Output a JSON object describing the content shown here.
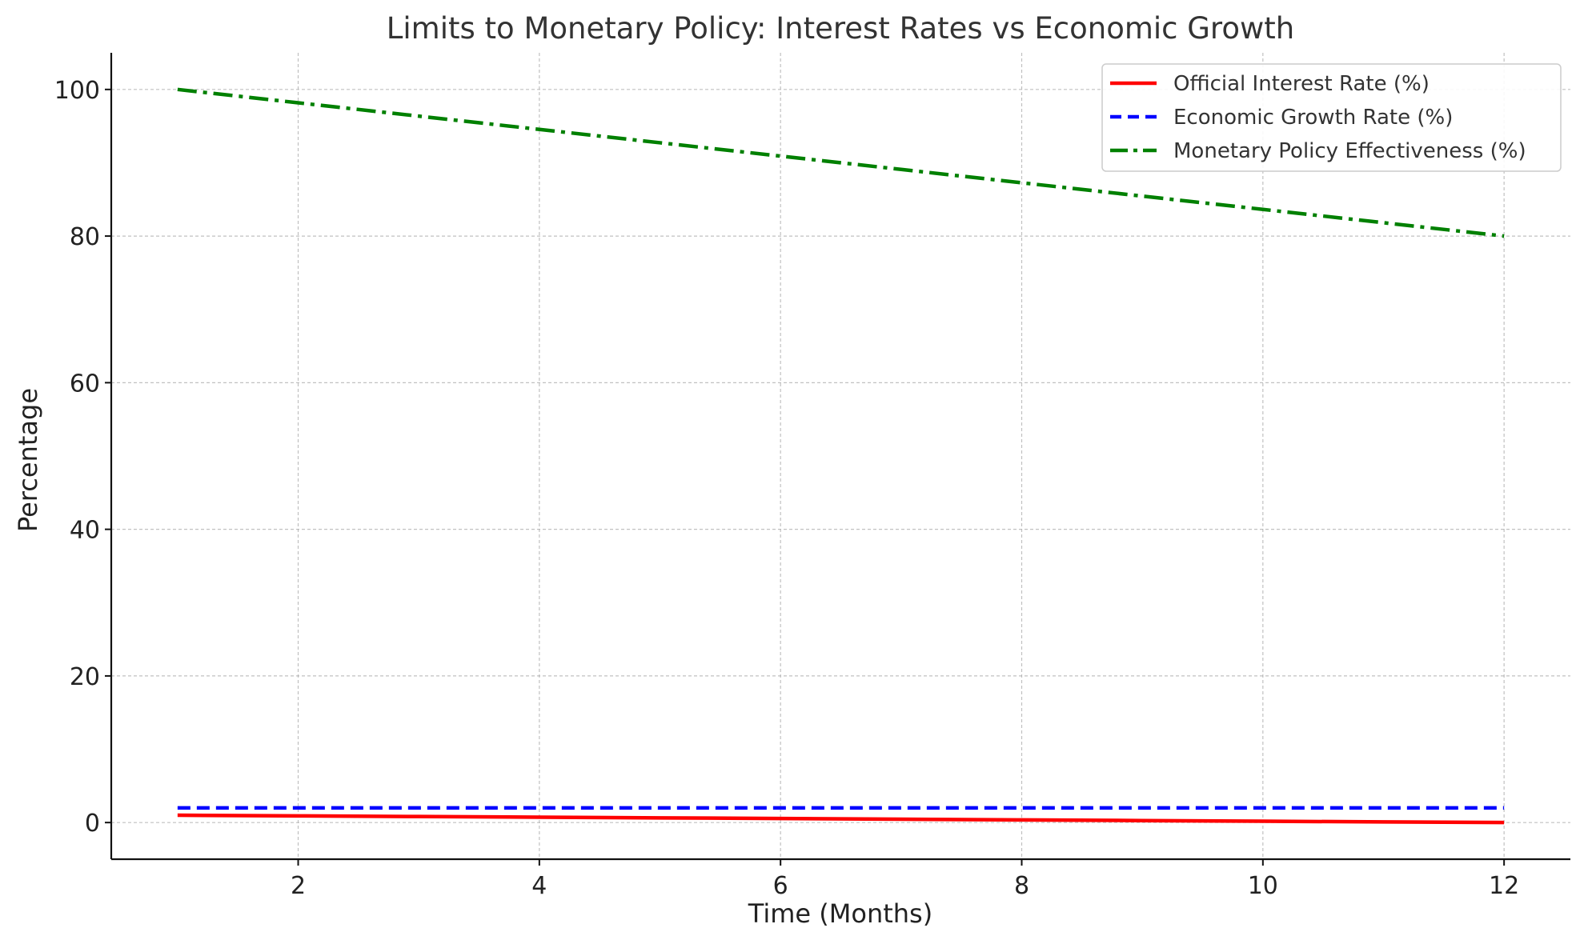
{
  "chart_data": {
    "type": "line",
    "title": "Limits to Monetary Policy: Interest Rates vs Economic Growth",
    "xlabel": "Time (Months)",
    "ylabel": "Percentage",
    "x": [
      1,
      2,
      3,
      4,
      5,
      6,
      7,
      8,
      9,
      10,
      11,
      12
    ],
    "xlim": [
      0.45,
      12.55
    ],
    "ylim": [
      -5,
      105
    ],
    "xticks": [
      2,
      4,
      6,
      8,
      10,
      12
    ],
    "yticks": [
      0,
      20,
      40,
      60,
      80,
      100
    ],
    "grid": true,
    "legend_position": "upper right",
    "series": [
      {
        "name": "Official Interest Rate (%)",
        "values": [
          1.0,
          0.91,
          0.82,
          0.73,
          0.64,
          0.55,
          0.45,
          0.36,
          0.27,
          0.18,
          0.09,
          0.0
        ],
        "color": "#ff0000",
        "style": "solid"
      },
      {
        "name": "Economic Growth Rate (%)",
        "values": [
          2,
          2,
          2,
          2,
          2,
          2,
          2,
          2,
          2,
          2,
          2,
          2
        ],
        "color": "#0000ff",
        "style": "dashed"
      },
      {
        "name": "Monetary Policy Effectiveness (%)",
        "values": [
          100.0,
          98.18,
          96.36,
          94.55,
          92.73,
          90.91,
          89.09,
          87.27,
          85.45,
          83.64,
          81.82,
          80.0
        ],
        "color": "#008000",
        "style": "dashdot"
      }
    ]
  }
}
